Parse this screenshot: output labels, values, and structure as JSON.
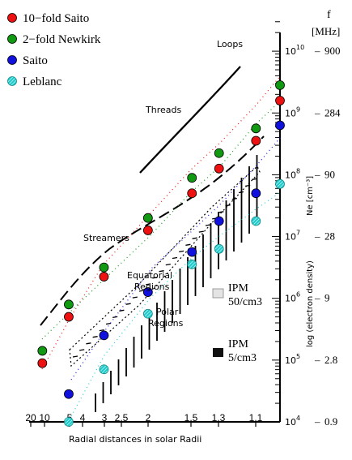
{
  "chart_data": {
    "type": "scatter",
    "title": "",
    "xlabel": "Radial distances in solar Radii",
    "ylabel": "log (electron density)",
    "y_unit_label": "Ne [cm⁻³]",
    "freq_header": "f",
    "freq_unit": "[MHz]",
    "x_scale": "reciprocal",
    "y_scale": "log",
    "xlim": [
      20,
      1.0
    ],
    "ylim_log10": [
      4,
      10.5
    ],
    "x_ticks": [
      "20",
      "10",
      "5",
      "4",
      "3",
      "2.5",
      "2",
      "1.5",
      "1.3",
      "1.1"
    ],
    "y_ticks": [
      {
        "label": "10",
        "exp": "4",
        "value": 4
      },
      {
        "label": "10",
        "exp": "5",
        "value": 5
      },
      {
        "label": "10",
        "exp": "6",
        "value": 6
      },
      {
        "label": "10",
        "exp": "7",
        "value": 7
      },
      {
        "label": "10",
        "exp": "8",
        "value": 8
      },
      {
        "label": "10",
        "exp": "9",
        "value": 9
      },
      {
        "label": "10",
        "exp": "10",
        "value": 10
      }
    ],
    "freq_ticks": [
      {
        "label": "900",
        "log_ne": 10
      },
      {
        "label": "284",
        "log_ne": 9
      },
      {
        "label": "90",
        "log_ne": 8
      },
      {
        "label": "28",
        "log_ne": 7
      },
      {
        "label": "9",
        "log_ne": 6
      },
      {
        "label": "2.8",
        "log_ne": 5
      },
      {
        "label": "0.9",
        "log_ne": 4
      }
    ],
    "legend_position": "top-left",
    "series": [
      {
        "name": "10−fold Saito",
        "color": "#ee1111",
        "marker": "filled",
        "x": [
          10,
          5,
          3,
          2,
          1.5,
          1.3,
          1.1,
          1.0
        ],
        "log_ne": [
          4.95,
          5.7,
          6.35,
          7.1,
          7.7,
          8.1,
          8.55,
          9.2
        ]
      },
      {
        "name": "2−fold Newkirk",
        "color": "#119911",
        "marker": "filled",
        "x": [
          10,
          5,
          3,
          2,
          1.5,
          1.3,
          1.1,
          1.0
        ],
        "log_ne": [
          5.15,
          5.9,
          6.5,
          7.3,
          7.95,
          8.35,
          8.75,
          9.45
        ]
      },
      {
        "name": "Saito",
        "color": "#1111dd",
        "marker": "filled",
        "x": [
          5,
          3,
          2,
          1.5,
          1.3,
          1.1,
          1.0
        ],
        "log_ne": [
          4.45,
          5.4,
          6.1,
          6.75,
          7.25,
          7.7,
          8.8
        ]
      },
      {
        "name": "Leblanc",
        "color": "#22cccc",
        "marker": "hatched",
        "x": [
          5,
          3,
          2,
          1.5,
          1.3,
          1.1,
          1.0
        ],
        "log_ne": [
          4.0,
          4.85,
          5.75,
          6.55,
          6.8,
          7.25,
          7.85
        ]
      }
    ],
    "annotations": [
      {
        "text": "Loops"
      },
      {
        "text": "Threads"
      },
      {
        "text": "Streamers"
      },
      {
        "text": "Equatorial"
      },
      {
        "text": "Regions"
      },
      {
        "text": "Polar"
      },
      {
        "text": "Regions"
      }
    ],
    "ipm_markers": [
      {
        "line1": "IPM",
        "line2": "50/cm3",
        "fill": "#e4e4e4"
      },
      {
        "line1": "IPM",
        "line2": "5/cm3",
        "fill": "#111111"
      }
    ]
  }
}
